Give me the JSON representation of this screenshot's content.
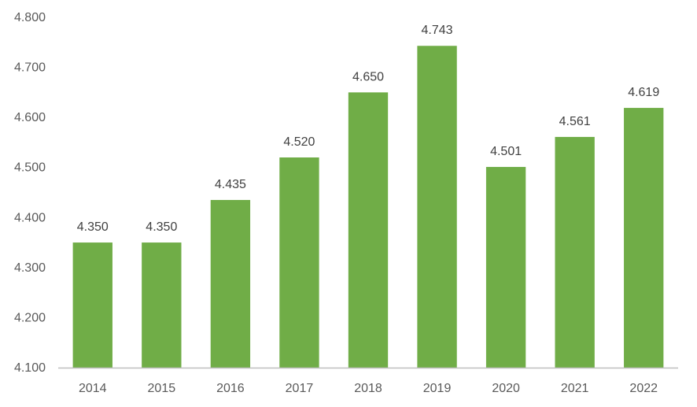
{
  "chart_data": {
    "type": "bar",
    "title": "",
    "xlabel": "",
    "ylabel": "",
    "categories": [
      "2014",
      "2015",
      "2016",
      "2017",
      "2018",
      "2019",
      "2020",
      "2021",
      "2022"
    ],
    "values": [
      4.35,
      4.35,
      4.435,
      4.52,
      4.65,
      4.743,
      4.501,
      4.561,
      4.619
    ],
    "data_labels": [
      "4.350",
      "4.350",
      "4.435",
      "4.520",
      "4.650",
      "4.743",
      "4.501",
      "4.561",
      "4.619"
    ],
    "ylim": [
      4.1,
      4.8
    ],
    "y_ticks": [
      4.1,
      4.2,
      4.3,
      4.4,
      4.5,
      4.6,
      4.7,
      4.8
    ],
    "y_tick_labels": [
      "4.100",
      "4.200",
      "4.300",
      "4.400",
      "4.500",
      "4.600",
      "4.700",
      "4.800"
    ],
    "grid": false,
    "legend": "none",
    "colors": {
      "bar": "#70AD47",
      "axis": "#BFBFBF"
    }
  }
}
